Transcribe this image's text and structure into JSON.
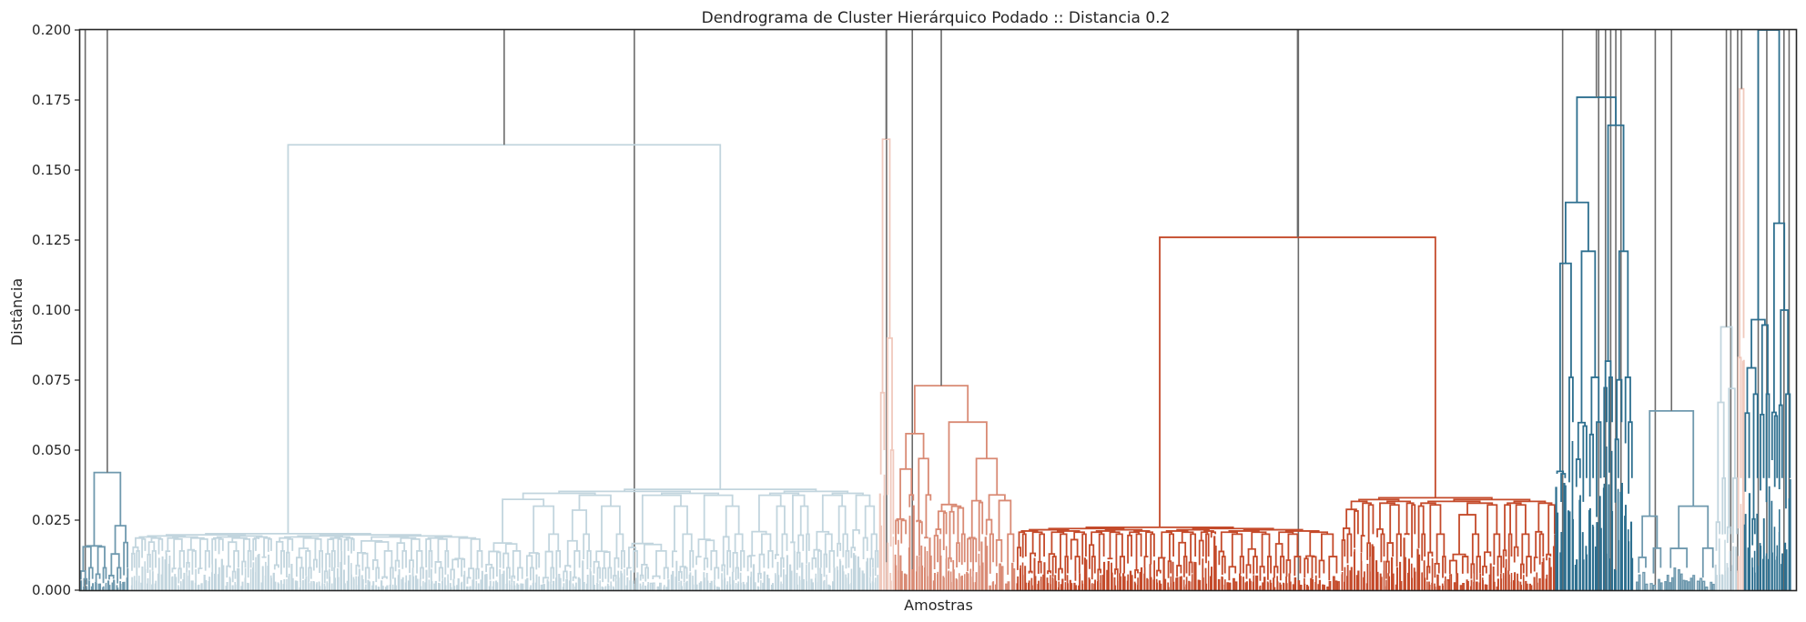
{
  "chart_data": {
    "type": "dendrogram",
    "title": "Dendrograma de Cluster Hierárquico Podado :: Distancia 0.2",
    "xlabel": "Amostras",
    "ylabel": "Distância",
    "ylim": [
      0,
      0.2
    ],
    "yticks": [
      "0.000",
      "0.025",
      "0.050",
      "0.075",
      "0.100",
      "0.125",
      "0.150",
      "0.175",
      "0.200"
    ],
    "grid": false,
    "colors": {
      "above_threshold": "#6b6b6b",
      "light_blue": "#c2d5de",
      "salmon": "#d98a74",
      "pale_pink": "#f0c9bd",
      "red_orange": "#c44a2a",
      "steel_blue": "#2d6f8f",
      "mid_blue": "#6f99ae"
    },
    "clusters": [
      {
        "color": "mid_blue",
        "x": [
          0,
          2.8
        ],
        "height": 0.042,
        "sub": [
          0.023,
          0.017,
          0.008,
          0.004,
          0.002
        ]
      },
      {
        "color": "light_blue",
        "x": [
          3,
          46.5
        ],
        "height": 0.159,
        "sub": [
          0.036,
          0.101,
          0.075,
          0.042,
          0.03,
          0.02,
          0.014,
          0.008,
          0.004
        ]
      },
      {
        "color": "pale_pink",
        "x": [
          46.6,
          47.4
        ],
        "height": 0.161,
        "sub": [
          0.09,
          0.05,
          0.02
        ]
      },
      {
        "color": "salmon",
        "x": [
          47.5,
          54.5
        ],
        "height": 0.073,
        "sub": [
          0.06,
          0.047,
          0.034,
          0.032,
          0.02,
          0.01
        ]
      },
      {
        "color": "red_orange",
        "x": [
          54.6,
          86
        ],
        "height": 0.126,
        "sub": [
          0.033,
          0.072,
          0.062,
          0.048,
          0.032,
          0.02,
          0.012,
          0.006
        ]
      },
      {
        "color": "steel_blue",
        "x": [
          86,
          90.5
        ],
        "height": 0.176,
        "sub": [
          0.166,
          0.121,
          0.076,
          0.06,
          0.04,
          0.02
        ]
      },
      {
        "color": "mid_blue",
        "x": [
          90.7,
          95.3
        ],
        "height": 0.064,
        "sub": [
          0.03,
          0.015,
          0.008
        ]
      },
      {
        "color": "light_blue",
        "x": [
          95.3,
          96.6
        ],
        "height": 0.094,
        "sub": [
          0.072,
          0.04,
          0.02
        ]
      },
      {
        "color": "pale_pink",
        "x": [
          96.6,
          97.0
        ],
        "height": 0.179,
        "sub": [
          0.09,
          0.04
        ]
      },
      {
        "color": "steel_blue",
        "x": [
          97.0,
          99.7
        ],
        "height": 0.2,
        "sub": [
          0.131,
          0.1,
          0.07,
          0.04,
          0.02
        ]
      }
    ],
    "above_threshold_links": [
      0.3,
      32.3,
      47.0,
      48.5,
      71.0,
      86.4,
      88.5,
      88.9,
      89.2,
      89.5,
      89.8,
      91.8,
      96.2,
      96.6,
      97.8,
      98.3,
      99.3,
      99.6
    ]
  }
}
